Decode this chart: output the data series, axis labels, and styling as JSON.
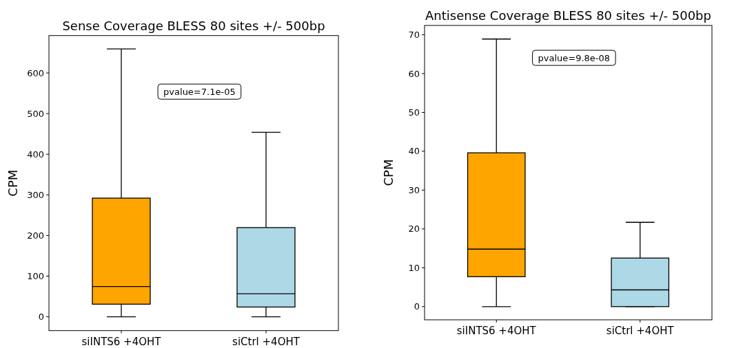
{
  "chart_data": [
    {
      "type": "box",
      "title": "Sense Coverage BLESS 80 sites +/- 500bp",
      "ylabel": "CPM",
      "categories": [
        "siINTS6 +4OHT",
        "siCtrl +4OHT"
      ],
      "colors": [
        "#ffa500",
        "#add8e6"
      ],
      "boxes": [
        {
          "low": 0,
          "q1": 31,
          "median": 74.5,
          "q3": 292,
          "high": 659
        },
        {
          "low": 0,
          "q1": 24,
          "median": 56.5,
          "q3": 219.5,
          "high": 454
        }
      ],
      "ylim": [
        -34,
        692
      ],
      "yticks": [
        0,
        100,
        200,
        300,
        400,
        500,
        600
      ],
      "annotations": [
        "pvalue=7.1e-05"
      ],
      "grid": false
    },
    {
      "type": "box",
      "title": "Antisense Coverage BLESS 80 sites +/- 500bp",
      "ylabel": "CPM",
      "categories": [
        "siINTS6 +4OHT",
        "siCtrl +4OHT"
      ],
      "colors": [
        "#ffa500",
        "#add8e6"
      ],
      "boxes": [
        {
          "low": 0,
          "q1": 7.7,
          "median": 14.8,
          "q3": 39.6,
          "high": 68.9
        },
        {
          "low": 0,
          "q1": 0,
          "median": 4.3,
          "q3": 12.5,
          "high": 21.7
        }
      ],
      "ylim": [
        -3.4,
        72.4
      ],
      "yticks": [
        0,
        10,
        20,
        30,
        40,
        50,
        60,
        70
      ],
      "annotations": [
        "pvalue=9.8e-08"
      ],
      "grid": false
    }
  ]
}
